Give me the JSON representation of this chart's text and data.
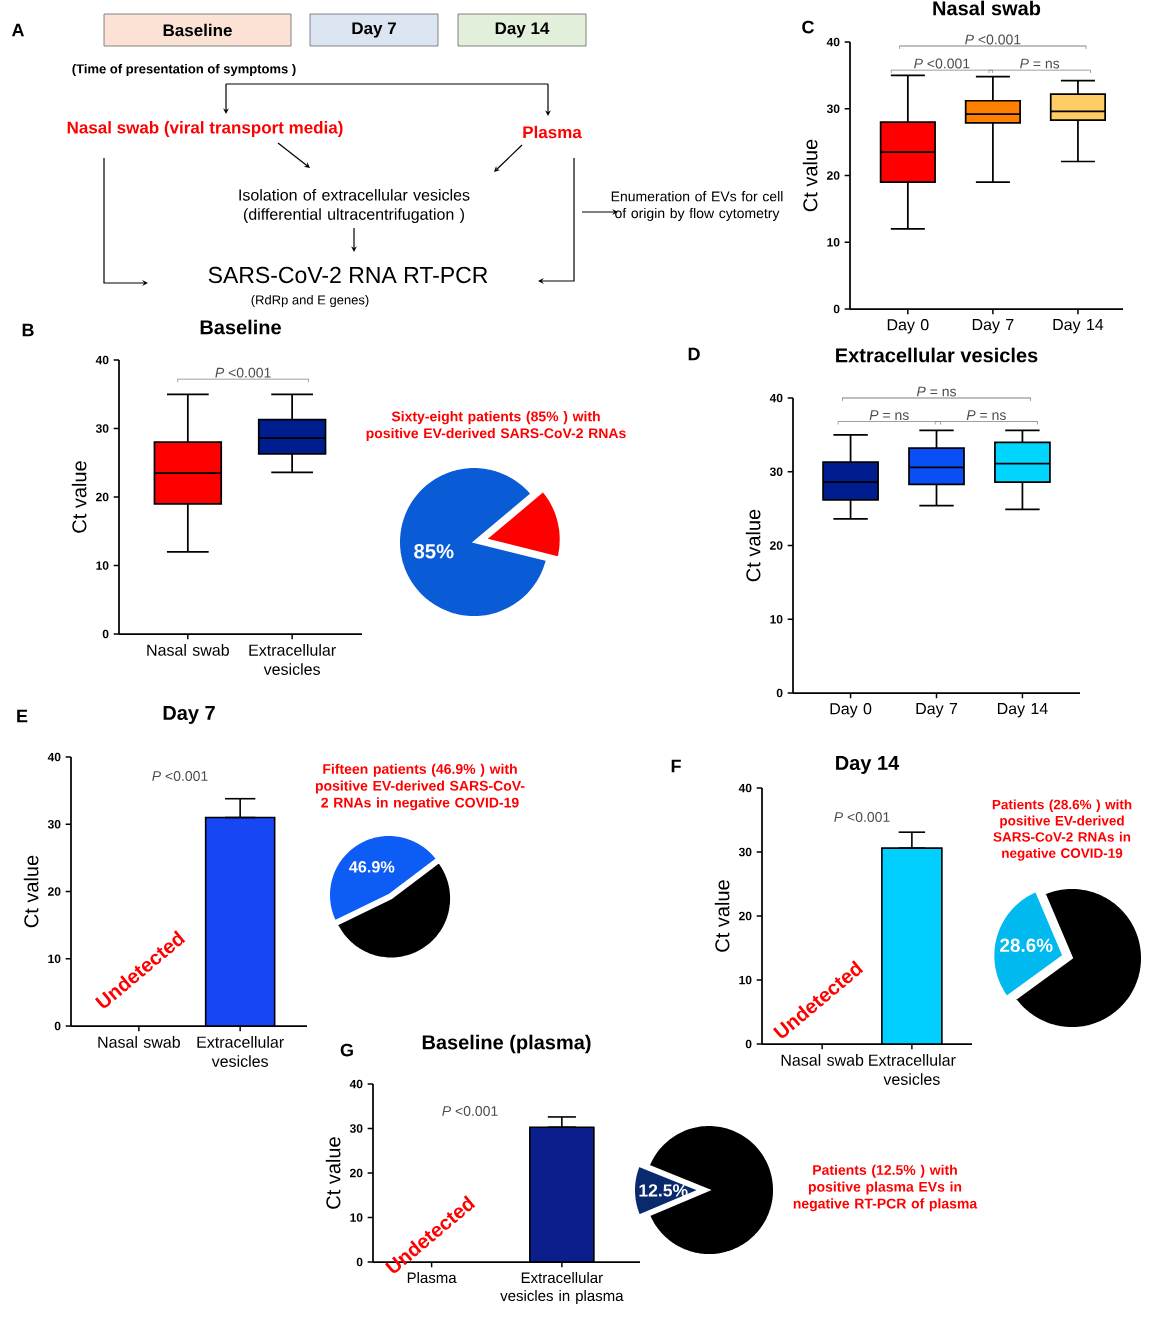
{
  "chart_data": [
    {
      "type": "other",
      "annotations": [
        "A",
        "Baseline",
        "Day 7",
        "Day 14",
        "(Time of presentation of symptoms )",
        "Nasal swab (viral transport media)",
        "Plasma",
        "Isolation of extracellular vesicles (differential ultracentrifugation )",
        "Enumeration of EVs for cell of origin by flow cytometry",
        "SARS-CoV-2 RNA RT-PCR",
        "(RdRp and E genes)"
      ]
    },
    {
      "type": "box",
      "title": "Nasal swab",
      "ylabel": "Ct value",
      "categories": [
        "Day 0",
        "Day 7",
        "Day 14"
      ],
      "boxes": [
        {
          "low": 12,
          "q1": 19,
          "median": 23.5,
          "q3": 28,
          "high": 35
        },
        {
          "low": 19,
          "q1": 27.9,
          "median": 29.2,
          "q3": 31.2,
          "high": 34.8
        },
        {
          "low": 22.1,
          "q1": 28.3,
          "median": 29.6,
          "q3": 32.2,
          "high": 34.2
        }
      ],
      "colors": [
        "#ff0000",
        "#ff8000",
        "#ffcc66"
      ],
      "ylim": [
        0,
        40
      ],
      "yticks": [
        0,
        10,
        20,
        30,
        40
      ],
      "annotations": [
        "C",
        "*P* <0.001",
        "*P* <0.001",
        "*P* = ns"
      ]
    },
    {
      "type": "box",
      "title": "Baseline",
      "ylabel": "Ct value",
      "categories": [
        "Nasal swab",
        "Extracellular vesicles"
      ],
      "boxes": [
        {
          "low": 12,
          "q1": 19,
          "median": 23.5,
          "q3": 28,
          "high": 35
        },
        {
          "low": 23.6,
          "q1": 26.3,
          "median": 28.6,
          "q3": 31.3,
          "high": 35
        }
      ],
      "colors": [
        "#ff0000",
        "#001d8f"
      ],
      "ylim": [
        0,
        40
      ],
      "yticks": [
        0,
        10,
        20,
        30,
        40
      ],
      "annotations": [
        "B",
        "*P* <0.001"
      ]
    },
    {
      "type": "pie",
      "categories": [
        null,
        null
      ],
      "values": [
        85,
        15
      ],
      "colors": [
        "#0a5bd6",
        "#ff0000"
      ],
      "value_labels": [
        "85%",
        null
      ],
      "annotations": [
        "Sixty-eight patients (85% ) with positive EV-derived SARS-CoV-2 RNAs"
      ]
    },
    {
      "type": "box",
      "title": "Extracellular vesicles",
      "ylabel": "Ct value",
      "categories": [
        "Day 0",
        "Day 7",
        "Day 14"
      ],
      "boxes": [
        {
          "low": 23.6,
          "q1": 26.2,
          "median": 28.6,
          "q3": 31.3,
          "high": 35
        },
        {
          "low": 25.4,
          "q1": 28.3,
          "median": 30.6,
          "q3": 33.2,
          "high": 35.6
        },
        {
          "low": 24.9,
          "q1": 28.6,
          "median": 31.1,
          "q3": 34,
          "high": 35.6
        }
      ],
      "colors": [
        "#001d8f",
        "#0a4ff5",
        "#00d5ff"
      ],
      "ylim": [
        0,
        40
      ],
      "yticks": [
        0,
        10,
        20,
        30,
        40
      ],
      "annotations": [
        "D",
        "*P* = ns",
        "*P* = ns",
        "*P* = ns"
      ]
    },
    {
      "type": "bar",
      "title": "Day 7",
      "ylabel": "Ct value",
      "categories": [
        "Nasal swab",
        "Extracellular vesicles"
      ],
      "values": [
        null,
        31
      ],
      "errors": [
        null,
        [
          31,
          33.8
        ]
      ],
      "color": "#1746f5",
      "ylim": [
        0,
        40
      ],
      "yticks": [
        0,
        10,
        20,
        30,
        40
      ],
      "annotations": [
        "E",
        "*P* <0.001",
        "Undetected"
      ]
    },
    {
      "type": "pie",
      "categories": [
        null,
        null
      ],
      "values": [
        46.9,
        53.1
      ],
      "colors": [
        "#0d5cf5",
        "#000000"
      ],
      "value_labels": [
        "46.9%",
        null
      ],
      "annotations": [
        "Fifteen patients (46.9% ) with positive EV-derived SARS-CoV-2 RNAs in negative COVID-19"
      ]
    },
    {
      "type": "bar",
      "title": "Day 14",
      "ylabel": "Ct value",
      "categories": [
        "Nasal swab",
        "Extracellular vesicles"
      ],
      "values": [
        null,
        30.6
      ],
      "errors": [
        null,
        [
          30.6,
          33.1
        ]
      ],
      "color": "#00cfff",
      "ylim": [
        0,
        40
      ],
      "yticks": [
        0,
        10,
        20,
        30,
        40
      ],
      "annotations": [
        "F",
        "*P* <0.001",
        "Undetected"
      ]
    },
    {
      "type": "pie",
      "categories": [
        null,
        null
      ],
      "values": [
        28.6,
        71.4
      ],
      "colors": [
        "#00b9ee",
        "#000000"
      ],
      "value_labels": [
        "28.6%",
        null
      ],
      "annotations": [
        "Patients (28.6% ) with positive EV-derived SARS-CoV-2 RNAs in negative COVID-19"
      ]
    },
    {
      "type": "bar",
      "title": "Baseline (plasma)",
      "ylabel": "Ct value",
      "categories": [
        "Plasma",
        "Extracellular vesicles in plasma"
      ],
      "values": [
        null,
        30.3
      ],
      "errors": [
        null,
        [
          30.3,
          32.6
        ]
      ],
      "color": "#0b1e8c",
      "ylim": [
        0,
        40
      ],
      "yticks": [
        0,
        10,
        20,
        30,
        40
      ],
      "annotations": [
        "G",
        "*P* <0.001",
        "Undetected"
      ]
    },
    {
      "type": "pie",
      "categories": [
        null,
        null
      ],
      "values": [
        12.5,
        87.5
      ],
      "colors": [
        "#0b2a6e",
        "#000000"
      ],
      "value_labels": [
        "12.5%",
        null
      ],
      "annotations": [
        "Patients (12.5% ) with positive plasma EVs in negative RT-PCR of plasma"
      ]
    }
  ]
}
